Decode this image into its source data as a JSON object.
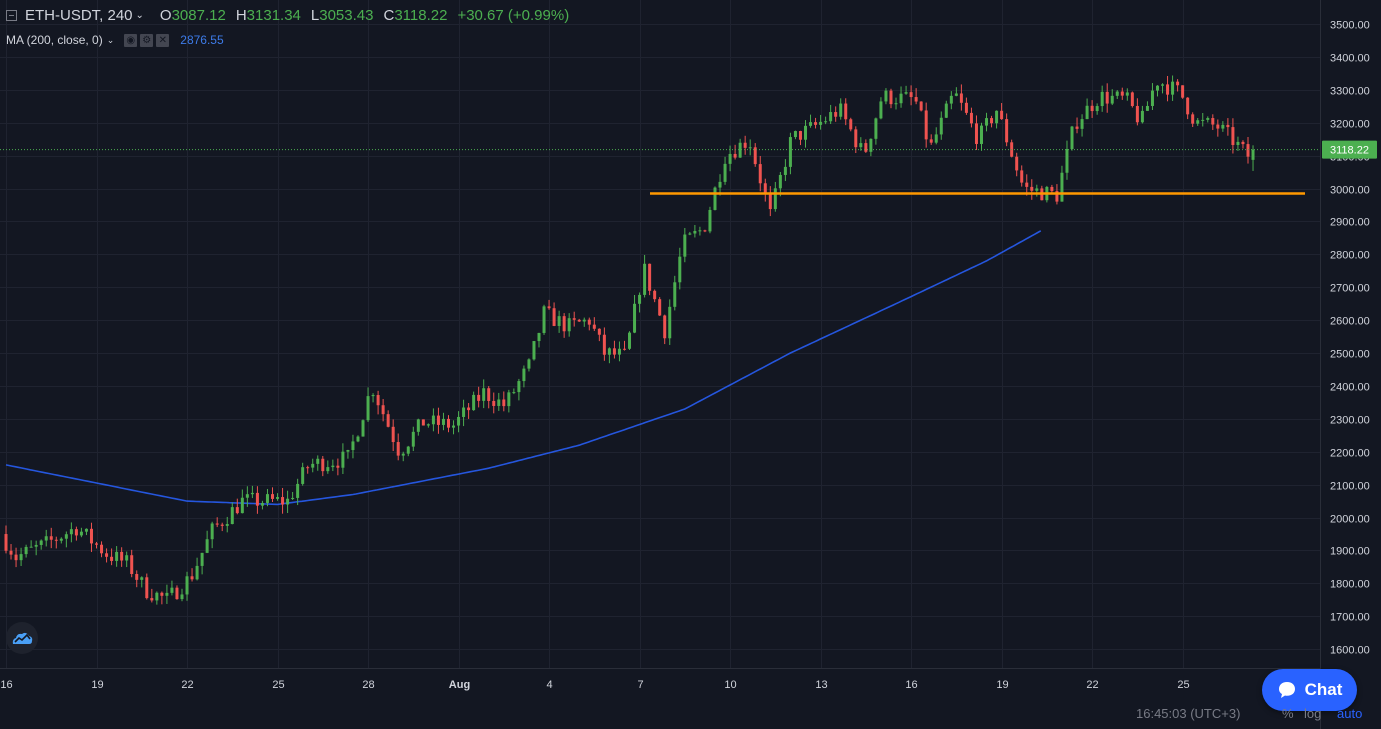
{
  "legend": {
    "symbol": "ETH-USDT, 240",
    "o_key": "O",
    "o_val": "3087.12",
    "h_key": "H",
    "h_val": "3131.34",
    "l_key": "L",
    "l_val": "3053.43",
    "c_key": "C",
    "c_val": "3118.22",
    "change": "+30.67 (+0.99%)"
  },
  "indicator": {
    "label": "MA (200, close, 0)",
    "value": "2876.55"
  },
  "price_axis": {
    "ticks": [
      "3500.00",
      "3400.00",
      "3300.00",
      "3200.00",
      "3100.00",
      "3000.00",
      "2900.00",
      "2800.00",
      "2700.00",
      "2600.00",
      "2500.00",
      "2400.00",
      "2300.00",
      "2200.00",
      "2100.00",
      "2000.00",
      "1900.00",
      "1800.00",
      "1700.00",
      "1600.00"
    ],
    "last_price": "3118.22"
  },
  "time_axis": {
    "ticks": [
      "16",
      "19",
      "22",
      "25",
      "28",
      "Aug",
      "4",
      "7",
      "10",
      "13",
      "16",
      "19",
      "22",
      "25"
    ]
  },
  "bottom_bar": {
    "time": "16:45:03 (UTC+3)",
    "percent": "%",
    "log": "log",
    "auto": "auto"
  },
  "chat": {
    "label": "Chat"
  },
  "colors": {
    "background": "#131722",
    "up": "#4caf50",
    "down": "#ef5350",
    "ma": "#2962ff",
    "support": "#ff9800",
    "accent": "#2962ff"
  },
  "icons": {
    "logo": "tradingview-cloud-icon",
    "chat": "chat-bubble-icon"
  },
  "chart_data": {
    "type": "candlestick",
    "symbol": "ETH-USDT",
    "interval": "240",
    "ylim": [
      1580,
      3560
    ],
    "grid": true,
    "support_level": 2985,
    "ma_period": 200,
    "ma_last": 2876.55,
    "ma_keypoints": [
      [
        -2.0,
        2160
      ],
      [
        4.0,
        2050
      ],
      [
        7.0,
        2040
      ],
      [
        9.5,
        2070
      ],
      [
        14.0,
        2150
      ],
      [
        17.0,
        2220
      ],
      [
        20.5,
        2330
      ],
      [
        24.0,
        2500
      ],
      [
        27.5,
        2650
      ],
      [
        30.5,
        2780
      ],
      [
        32.4,
        2876.55
      ]
    ],
    "close_keypoints": [
      [
        -2.0,
        1950
      ],
      [
        -1.5,
        1880
      ],
      [
        -0.5,
        1920
      ],
      [
        0.5,
        1970
      ],
      [
        1.5,
        1890
      ],
      [
        2.2,
        1860
      ],
      [
        2.8,
        1780
      ],
      [
        3.5,
        1750
      ],
      [
        4.3,
        1820
      ],
      [
        5.0,
        1960
      ],
      [
        6.0,
        2050
      ],
      [
        7.5,
        2050
      ],
      [
        8.2,
        2160
      ],
      [
        9.5,
        2180
      ],
      [
        10.3,
        2400
      ],
      [
        11.2,
        2200
      ],
      [
        12.0,
        2290
      ],
      [
        13.0,
        2280
      ],
      [
        14.0,
        2380
      ],
      [
        14.7,
        2340
      ],
      [
        15.5,
        2460
      ],
      [
        16.0,
        2620
      ],
      [
        16.8,
        2580
      ],
      [
        17.5,
        2600
      ],
      [
        18.0,
        2500
      ],
      [
        18.7,
        2490
      ],
      [
        19.3,
        2760
      ],
      [
        20.0,
        2570
      ],
      [
        20.6,
        2830
      ],
      [
        21.3,
        2880
      ],
      [
        22.0,
        3100
      ],
      [
        22.8,
        3150
      ],
      [
        23.5,
        2920
      ],
      [
        24.2,
        3150
      ],
      [
        25.0,
        3190
      ],
      [
        25.8,
        3240
      ],
      [
        26.6,
        3100
      ],
      [
        27.2,
        3280
      ],
      [
        28.3,
        3270
      ],
      [
        28.8,
        3120
      ],
      [
        29.6,
        3290
      ],
      [
        30.4,
        3150
      ],
      [
        31.0,
        3240
      ],
      [
        31.9,
        3000
      ],
      [
        33.0,
        2980
      ],
      [
        33.6,
        3200
      ],
      [
        34.4,
        3280
      ],
      [
        35.3,
        3270
      ],
      [
        35.8,
        3200
      ],
      [
        36.3,
        3330
      ],
      [
        37.1,
        3290
      ],
      [
        37.6,
        3200
      ],
      [
        38.3,
        3190
      ],
      [
        38.8,
        3150
      ],
      [
        39.3,
        3100
      ]
    ],
    "last": {
      "open": 3087.12,
      "high": 3131.34,
      "low": 3053.43,
      "close": 3118.22
    }
  }
}
